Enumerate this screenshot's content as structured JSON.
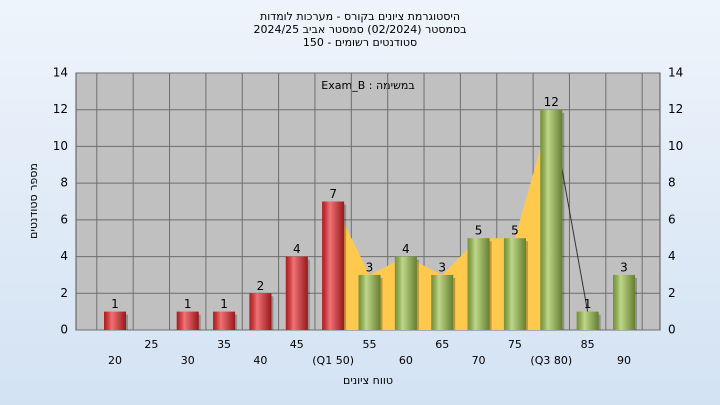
{
  "chart_data": {
    "type": "bar",
    "title": "היסטוגרמת ציונים בקורס - מערכות לומדות",
    "subtitle": "בסמסטר  (02/2024)  סמסטר אביב 2024/25",
    "subtitle2": "סטודנטים רשומים - 150",
    "annotation": "Exam_B : במשימה",
    "x_label": "טווח ציונים",
    "y_label": "מספר סטודנטים",
    "categories": [
      "20",
      "25",
      "30",
      "35",
      "40",
      "45",
      "(Q1 50)",
      "55",
      "60",
      "65",
      "70",
      "75",
      "(Q3 80)",
      "85",
      "90"
    ],
    "values": [
      1,
      null,
      1,
      1,
      2,
      4,
      7,
      3,
      4,
      3,
      5,
      5,
      12,
      1,
      3
    ],
    "colors": [
      "#e8262b",
      "#e8262b",
      "#e8262b",
      "#e8262b",
      "#e8262b",
      "#e8262b",
      "#e8262b",
      "#9bc24a",
      "#9bc24a",
      "#9bc24a",
      "#9bc24a",
      "#9bc24a",
      "#9bc24a",
      "#9bc24a",
      "#9bc24a"
    ],
    "area_color": "#ffc94d",
    "ylim": [
      0,
      14
    ],
    "yticks": [
      0,
      2,
      4,
      6,
      8,
      10,
      12,
      14
    ],
    "grid": true
  }
}
